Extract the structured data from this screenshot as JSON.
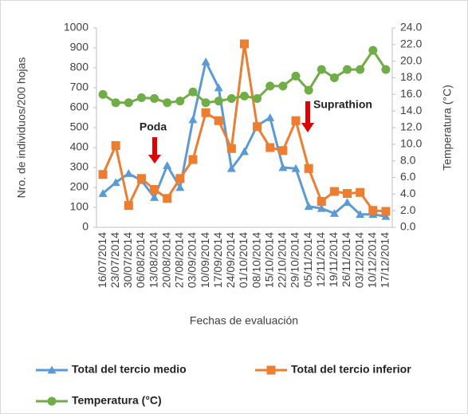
{
  "chart_data": {
    "type": "line",
    "categories": [
      "16/07/2014",
      "23/07/2014",
      "30/07/2014",
      "06/08/2014",
      "13/08/2014",
      "20/08/2014",
      "27/08/2014",
      "03/09/2014",
      "10/09/2014",
      "17/09/2014",
      "24/09/2014",
      "01/10/2014",
      "08/10/2014",
      "15/10/2014",
      "22/10/2014",
      "29/10/2014",
      "05/11/2014",
      "12/11/2014",
      "19/11/2014",
      "26/11/2014",
      "03/12/2014",
      "10/12/2014",
      "17/12/2014"
    ],
    "series": [
      {
        "name": "Total del tercio medio",
        "color": "#5b9bd5",
        "marker": "triangle",
        "values": [
          170,
          225,
          270,
          235,
          150,
          310,
          200,
          540,
          830,
          700,
          295,
          380,
          510,
          550,
          300,
          295,
          105,
          95,
          70,
          125,
          65,
          65,
          55
        ]
      },
      {
        "name": "Total del tercio inferior",
        "color": "#ed7d31",
        "marker": "square",
        "values": [
          265,
          410,
          110,
          245,
          190,
          145,
          245,
          340,
          575,
          535,
          395,
          920,
          505,
          400,
          385,
          535,
          295,
          130,
          180,
          170,
          175,
          85,
          80
        ]
      },
      {
        "name": "Temperatura (°C)",
        "color": "#70ad47",
        "marker": "circle",
        "axis": "y2",
        "values": [
          16.0,
          15.0,
          15.0,
          15.6,
          15.5,
          15.0,
          15.2,
          16.3,
          15.0,
          15.2,
          15.5,
          15.8,
          15.5,
          17.0,
          17.0,
          18.2,
          16.5,
          19.0,
          18.0,
          19.0,
          19.0,
          21.3,
          19.0
        ]
      }
    ],
    "ylim": [
      0,
      1000
    ],
    "yticks": [
      0,
      100,
      200,
      300,
      400,
      500,
      600,
      700,
      800,
      900,
      1000
    ],
    "y2lim": [
      0,
      24
    ],
    "y2ticks": [
      {
        "value": 0,
        "label": "0.0"
      },
      {
        "value": 2,
        "label": "2.0"
      },
      {
        "value": 4,
        "label": "4.0"
      },
      {
        "value": 6,
        "label": "6.0"
      },
      {
        "value": 8,
        "label": "8.0"
      },
      {
        "value": 10,
        "label": "10.0"
      },
      {
        "value": 12,
        "label": "12.0"
      },
      {
        "value": 14,
        "label": "14.0"
      },
      {
        "value": 16,
        "label": "16.0"
      },
      {
        "value": 18,
        "label": "18.0"
      },
      {
        "value": 20,
        "label": "20.0"
      },
      {
        "value": 22,
        "label": "22.0"
      },
      {
        "value": 24,
        "label": "24.0"
      }
    ],
    "ylabel": "Nro. de individuos/200 hojas",
    "y2label": "Temperatura (°C)",
    "xlabel": "Fechas de evaluación",
    "annotations": [
      {
        "text": "Poda"
      },
      {
        "text": "Suprathion"
      }
    ],
    "grid": false
  }
}
